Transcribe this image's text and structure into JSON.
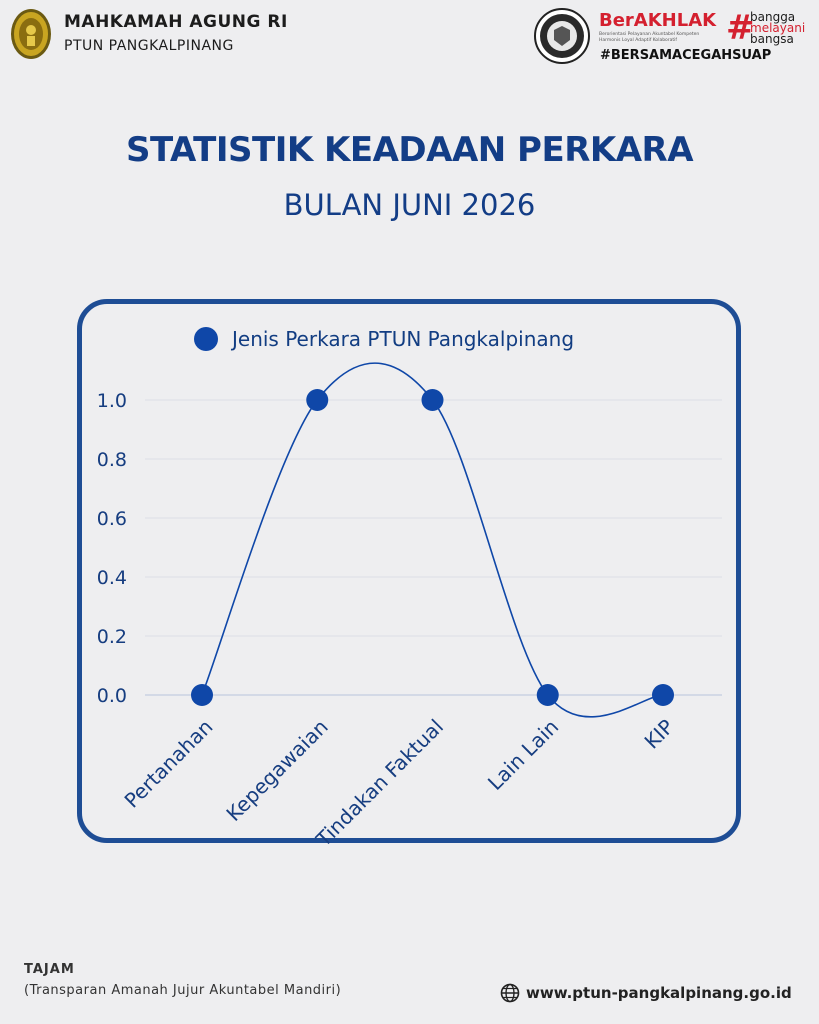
{
  "header": {
    "org_name": "MAHKAMAH AGUNG RI",
    "org_sub": "PTUN PANGKALPINANG",
    "berakhlak_word": "BerAKHLAK",
    "berakhlak_sub": "Berorientasi Pelayanan Akuntabel Kompeten Harmonis Loyal Adaptif Kolaboratif",
    "bangga_lines": [
      "bangga",
      "melayani",
      "bangsa"
    ],
    "hashtag": "#BERSAMACEGAHSUAP",
    "icons": [
      "mahkamah-agung-seal-icon",
      "kemenpan-badge-icon"
    ]
  },
  "title": "STATISTIK KEADAAN PERKARA",
  "subtitle": "BULAN JUNI 2026",
  "colors": {
    "title": "#133d86",
    "card_border": "#1e4d95",
    "series": "#0f47a8",
    "accent_red": "#d4202f",
    "background": "#eeeef0"
  },
  "chart_data": {
    "type": "line",
    "categories": [
      "Pertanahan",
      "Kepegawaian",
      "Tindakan Faktual",
      "Lain Lain",
      "KIP"
    ],
    "series": [
      {
        "name": "Jenis Perkara PTUN Pangkalpinang",
        "values": [
          0,
          1,
          1,
          0,
          0
        ]
      }
    ],
    "y_ticks": [
      "0.0",
      "0.2",
      "0.4",
      "0.6",
      "0.8",
      "1.0"
    ],
    "ylim": [
      0,
      1
    ],
    "smooth": true,
    "grid": true,
    "legend_position": "top"
  },
  "footer": {
    "title": "TAJAM",
    "subtitle": "(Transparan Amanah Jujur Akuntabel Mandiri)",
    "website": "www.ptun-pangkalpinang.go.id"
  }
}
